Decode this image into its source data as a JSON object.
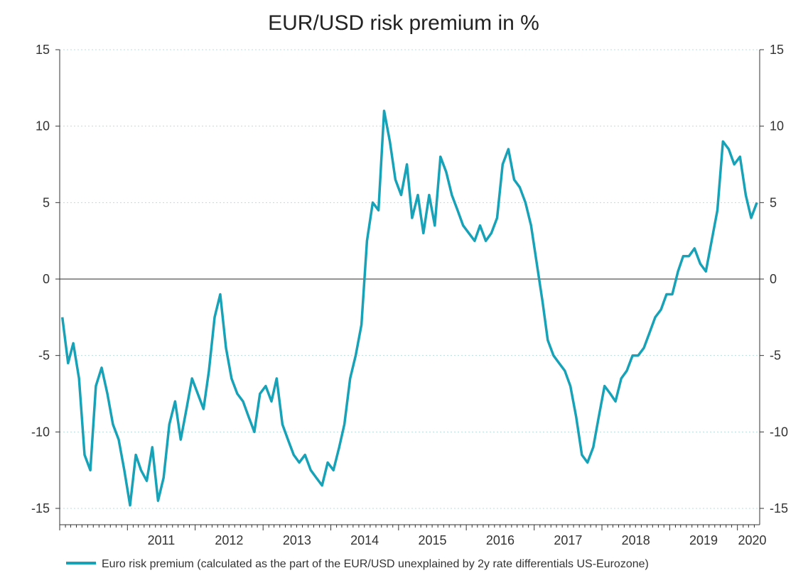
{
  "chart_data": {
    "type": "line",
    "title": "EUR/USD risk premium in %",
    "xlabel": "",
    "ylabel": "",
    "ylim": [
      -15,
      15
    ],
    "y_ticks": [
      15,
      10,
      5,
      0,
      -5,
      -10,
      -15
    ],
    "xlim": [
      "2010-01-01",
      "2020-04-30"
    ],
    "x_tick_labels": [
      "2011",
      "2012",
      "2013",
      "2014",
      "2015",
      "2016",
      "2017",
      "2018",
      "2019",
      "2020"
    ],
    "grid": "horizontal dotted",
    "zero_line": true,
    "legend_position": "bottom",
    "colors": {
      "series": "#17a2b8",
      "zero_line": "#555555",
      "grid": "#b8dde0",
      "axis": "#333333"
    },
    "series": [
      {
        "name": "Euro risk premium (calculated as the part of the EUR/USD unexplained by 2y rate differentials US-Eurozone)",
        "x": [
          "2010-01",
          "2010-02",
          "2010-03",
          "2010-04",
          "2010-05",
          "2010-06",
          "2010-07",
          "2010-08",
          "2010-09",
          "2010-10",
          "2010-11",
          "2010-12",
          "2011-01",
          "2011-02",
          "2011-03",
          "2011-04",
          "2011-05",
          "2011-06",
          "2011-07",
          "2011-08",
          "2011-09",
          "2011-10",
          "2011-11",
          "2011-12",
          "2012-01",
          "2012-02",
          "2012-03",
          "2012-04",
          "2012-05",
          "2012-06",
          "2012-07",
          "2012-08",
          "2012-09",
          "2012-10",
          "2012-11",
          "2012-12",
          "2013-01",
          "2013-02",
          "2013-03",
          "2013-04",
          "2013-05",
          "2013-06",
          "2013-07",
          "2013-08",
          "2013-09",
          "2013-10",
          "2013-11",
          "2013-12",
          "2014-01",
          "2014-02",
          "2014-03",
          "2014-04",
          "2014-05",
          "2014-06",
          "2014-07",
          "2014-08",
          "2014-09",
          "2014-10",
          "2014-11",
          "2014-12",
          "2015-01",
          "2015-02",
          "2015-03",
          "2015-04",
          "2015-05",
          "2015-06",
          "2015-07",
          "2015-08",
          "2015-09",
          "2015-10",
          "2015-11",
          "2015-12",
          "2016-01",
          "2016-02",
          "2016-03",
          "2016-04",
          "2016-05",
          "2016-06",
          "2016-07",
          "2016-08",
          "2016-09",
          "2016-10",
          "2016-11",
          "2016-12",
          "2017-01",
          "2017-02",
          "2017-03",
          "2017-04",
          "2017-05",
          "2017-06",
          "2017-07",
          "2017-08",
          "2017-09",
          "2017-10",
          "2017-11",
          "2017-12",
          "2018-01",
          "2018-02",
          "2018-03",
          "2018-04",
          "2018-05",
          "2018-06",
          "2018-07",
          "2018-08",
          "2018-09",
          "2018-10",
          "2018-11",
          "2018-12",
          "2019-01",
          "2019-02",
          "2019-03",
          "2019-04",
          "2019-05",
          "2019-06",
          "2019-07",
          "2019-08",
          "2019-09",
          "2019-10",
          "2019-11",
          "2019-12",
          "2020-01",
          "2020-02",
          "2020-03",
          "2020-04"
        ],
        "values": [
          -2.5,
          -5.5,
          -4.2,
          -6.5,
          -11.5,
          -12.5,
          -7.0,
          -5.8,
          -7.5,
          -9.5,
          -10.5,
          -12.5,
          -14.8,
          -11.5,
          -12.5,
          -13.2,
          -11.0,
          -14.5,
          -13.0,
          -9.5,
          -8.0,
          -10.5,
          -8.5,
          -6.5,
          -7.5,
          -8.5,
          -6.0,
          -2.5,
          -1.0,
          -4.5,
          -6.5,
          -7.5,
          -8.0,
          -9.0,
          -10.0,
          -7.5,
          -7.0,
          -8.0,
          -6.5,
          -9.5,
          -10.5,
          -11.5,
          -12.0,
          -11.5,
          -12.5,
          -13.0,
          -13.5,
          -12.0,
          -12.5,
          -11.0,
          -9.5,
          -6.5,
          -5.0,
          -3.0,
          2.5,
          5.0,
          4.5,
          11.0,
          9.0,
          6.5,
          5.5,
          7.5,
          4.0,
          5.5,
          3.0,
          5.5,
          3.5,
          8.0,
          7.0,
          5.5,
          4.5,
          3.5,
          3.0,
          2.5,
          3.5,
          2.5,
          3.0,
          4.0,
          7.5,
          8.5,
          6.5,
          6.0,
          5.0,
          3.5,
          1.0,
          -1.5,
          -4.0,
          -5.0,
          -5.5,
          -6.0,
          -7.0,
          -9.0,
          -11.5,
          -12.0,
          -11.0,
          -9.0,
          -7.0,
          -7.5,
          -8.0,
          -6.5,
          -6.0,
          -5.0,
          -5.0,
          -4.5,
          -3.5,
          -2.5,
          -2.0,
          -1.0,
          -1.0,
          0.5,
          1.5,
          1.5,
          2.0,
          1.0,
          0.5,
          2.5,
          4.5,
          9.0,
          8.5,
          7.5,
          8.0,
          5.5,
          4.0,
          5.0
        ]
      }
    ]
  }
}
